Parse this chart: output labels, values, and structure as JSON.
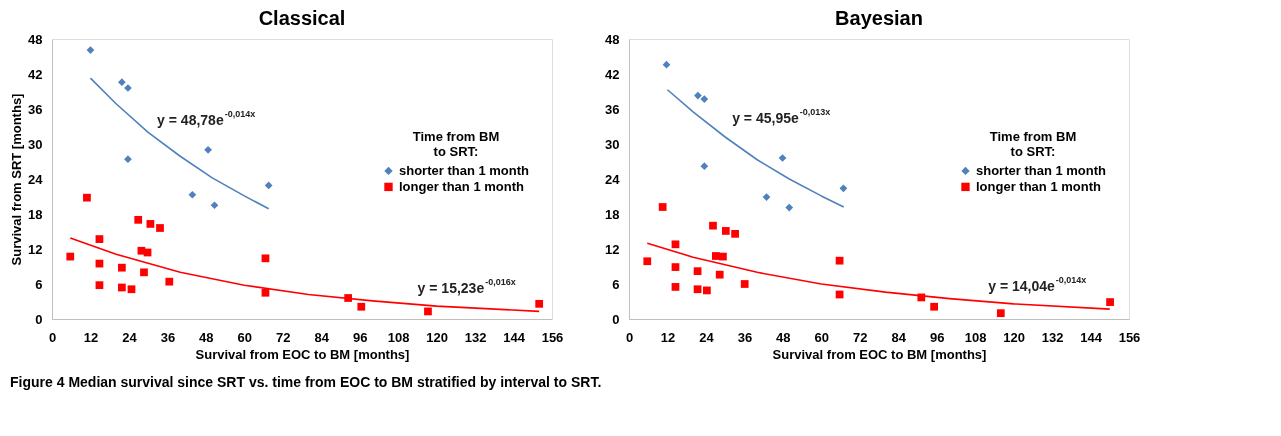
{
  "chart_data": [
    {
      "type": "scatter",
      "title": "Classical",
      "xlabel": "Survival from EOC to BM [months]",
      "ylabel": "Survival from SRT [months]",
      "legend_title": "Time from BM to SRT:",
      "legend": "right",
      "grid": false,
      "xlim": [
        0,
        156
      ],
      "xticks": [
        0,
        12,
        24,
        36,
        48,
        60,
        72,
        84,
        96,
        108,
        120,
        132,
        144,
        156
      ],
      "ylim": [
        0,
        48
      ],
      "yticks": [
        0,
        6,
        12,
        18,
        24,
        30,
        36,
        42,
        48
      ],
      "series": [
        {
          "name": "shorter than 1 month",
          "color": "#4f81bd",
          "marker": "diamond",
          "x": [
            12.0,
            21.8,
            23.7,
            23.7,
            48.7,
            43.8,
            50.7,
            67.6
          ],
          "values": [
            46.1,
            40.6,
            39.6,
            27.4,
            29.0,
            21.3,
            19.5,
            22.9
          ]
        },
        {
          "name": "longer than 1 month",
          "color": "#ff0000",
          "marker": "square",
          "x": [
            10.9,
            5.7,
            14.8,
            14.8,
            14.8,
            21.8,
            21.8,
            24.8,
            26.9,
            27.9,
            29.8,
            28.7,
            30.7,
            33.7,
            36.6,
            66.6,
            66.6,
            92.4,
            96.5,
            117.3,
            152
          ],
          "values": [
            20.8,
            10.7,
            13.7,
            9.5,
            5.8,
            8.8,
            5.4,
            5.1,
            17.0,
            11.7,
            11.4,
            8.0,
            16.3,
            15.6,
            6.4,
            10.4,
            4.5,
            3.6,
            2.1,
            1.3,
            2.6
          ]
        },
        {
          "type": "line",
          "color": "#4f81bd",
          "x": [
            12,
            20,
            30,
            40,
            50,
            60,
            67.6
          ],
          "values": [
            41.3,
            36.9,
            32.0,
            27.9,
            24.2,
            21.1,
            18.9
          ]
        },
        {
          "type": "line",
          "color": "#ff0000",
          "x": [
            5.7,
            20,
            40,
            60,
            80,
            100,
            120,
            152
          ],
          "values": [
            13.9,
            11.1,
            8.0,
            5.8,
            4.2,
            3.1,
            2.2,
            1.3
          ]
        }
      ],
      "annotations": [
        "y = 48,78e$^{-0,014x}$",
        "y = 15,23e$^{-0,016x}$",
        "Figure 4 Median survival since SRT vs. time from EOC to BM stratified by interval to SRT."
      ]
    },
    {
      "type": "scatter",
      "title": "Bayesian",
      "xlabel": "Survival from EOC to BM [months]",
      "legend_title": "Time from BM to SRT:",
      "legend": "right",
      "grid": false,
      "xlim": [
        0,
        156
      ],
      "xticks": [
        0,
        12,
        24,
        36,
        48,
        60,
        72,
        84,
        96,
        108,
        120,
        132,
        144,
        156
      ],
      "ylim": [
        0,
        48
      ],
      "yticks": [
        0,
        6,
        12,
        18,
        24,
        30,
        36,
        42,
        48
      ],
      "series": [
        {
          "name": "shorter than 1 month",
          "color": "#4f81bd",
          "marker": "diamond",
          "x": [
            11.7,
            21.5,
            23.5,
            23.5,
            47.9,
            42.9,
            50.0,
            66.9
          ],
          "values": [
            43.6,
            38.3,
            37.7,
            26.2,
            27.6,
            20.9,
            19.1,
            22.4
          ]
        },
        {
          "name": "longer than 1 month",
          "color": "#ff0000",
          "marker": "square",
          "x": [
            10.5,
            5.7,
            14.5,
            14.5,
            14.5,
            21.4,
            21.4,
            24.3,
            26.2,
            27.1,
            29.3,
            28.3,
            30.2,
            33.1,
            36.1,
            65.7,
            65.7,
            91.2,
            95.2,
            116,
            150.1
          ],
          "values": [
            19.2,
            9.9,
            12.8,
            8.9,
            5.5,
            8.2,
            5.1,
            4.9,
            16.0,
            10.8,
            10.7,
            7.6,
            15.1,
            14.6,
            6.0,
            10.0,
            4.2,
            3.7,
            2.1,
            1.0,
            2.9
          ]
        },
        {
          "type": "line",
          "color": "#4f81bd",
          "x": [
            12,
            20,
            30,
            40,
            50,
            60,
            67
          ],
          "values": [
            39.3,
            35.5,
            31.2,
            27.3,
            24.0,
            21.1,
            19.2
          ]
        },
        {
          "type": "line",
          "color": "#ff0000",
          "x": [
            5.7,
            20,
            40,
            60,
            80,
            100,
            120,
            150
          ],
          "values": [
            13.0,
            10.6,
            8.0,
            6.0,
            4.6,
            3.5,
            2.6,
            1.7
          ]
        }
      ],
      "annotations": [
        "y = 45,95e$^{-0,013x}$",
        "y = 14,04e$^{-0,014x}$"
      ]
    }
  ]
}
